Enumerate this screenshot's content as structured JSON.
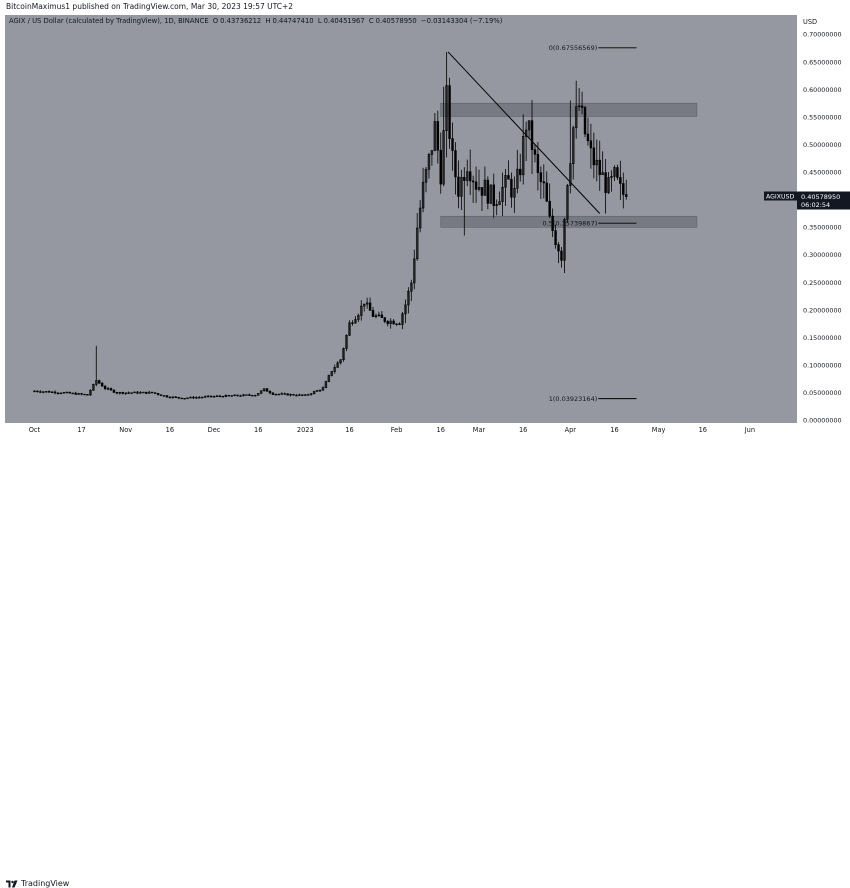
{
  "header": {
    "published": "BitcoinMaximus1 published on TradingView.com, Mar 30, 2023 19:57 UTC+2"
  },
  "legend": {
    "symbol": "AGIX / US Dollar (calculated by TradingView), 1D, BINANCE",
    "o_label": "O",
    "o_value": "0.43736212",
    "h_label": "H",
    "h_value": "0.44747410",
    "l_label": "L",
    "l_value": "0.40451967",
    "c_label": "C",
    "c_value": "0.40578950",
    "change": "−0.03143304 (−7.19%)"
  },
  "price_axis": {
    "currency": "USD",
    "ticks": [
      "0.70000000",
      "0.65000000",
      "0.60000000",
      "0.55000000",
      "0.50000000",
      "0.45000000",
      "0.40000000",
      "0.35000000",
      "0.30000000",
      "0.25000000",
      "0.20000000",
      "0.15000000",
      "0.10000000",
      "0.05000000",
      "0.00000000"
    ],
    "tick_values": [
      0.7,
      0.65,
      0.6,
      0.55,
      0.5,
      0.45,
      0.4,
      0.35,
      0.3,
      0.25,
      0.2,
      0.15,
      0.1,
      0.05,
      0.0
    ],
    "current_label": "AGIXUSD",
    "current_price": "0.40578950",
    "countdown": "06:02:54"
  },
  "time_axis": {
    "ticks": [
      "Oct",
      "17",
      "Nov",
      "16",
      "Dec",
      "16",
      "2023",
      "16",
      "Feb",
      "16",
      "Mar",
      "16",
      "Apr",
      "16",
      "May",
      "16",
      "Jun"
    ],
    "tick_days": [
      0,
      16,
      31,
      46,
      61,
      76,
      92,
      107,
      123,
      138,
      151,
      166,
      182,
      197,
      212,
      227,
      243
    ]
  },
  "fib": {
    "level0": "0(0.67556569)",
    "level05": "0.5(0.35739867)",
    "level1": "1(0.03923164)",
    "values": [
      0.67556569,
      0.35739867,
      0.03923164
    ]
  },
  "footer": {
    "brand": "TradingView"
  },
  "colors": {
    "background": "#9598a1",
    "candles": "#000000",
    "zone": "#777a82",
    "price_tag": "#131722"
  },
  "chart_data": {
    "type": "candlestick",
    "title": "AGIX / US Dollar (calculated by TradingView), 1D, BINANCE",
    "x_unit": "days since Sep 16, 2022",
    "ylim": [
      -0.005,
      0.735
    ],
    "xlim": [
      -10,
      259
    ],
    "ohlc": [],
    "trendline": {
      "from": {
        "day": 140.5,
        "price": 0.668
      },
      "to": {
        "day": 192,
        "price": 0.375
      }
    },
    "zones": [
      {
        "day_start": 138,
        "day_end": 225,
        "top": 0.575,
        "bottom": 0.551
      },
      {
        "day_start": 138,
        "day_end": 225,
        "top": 0.37,
        "bottom": 0.35
      }
    ],
    "fib_levels": [
      {
        "label": "0(0.67556569)",
        "value": 0.67556569
      },
      {
        "label": "0.5(0.35739867)",
        "value": 0.35739867
      },
      {
        "label": "1(0.03923164)",
        "value": 0.03923164
      }
    ],
    "last_close": 0.4057895
  }
}
